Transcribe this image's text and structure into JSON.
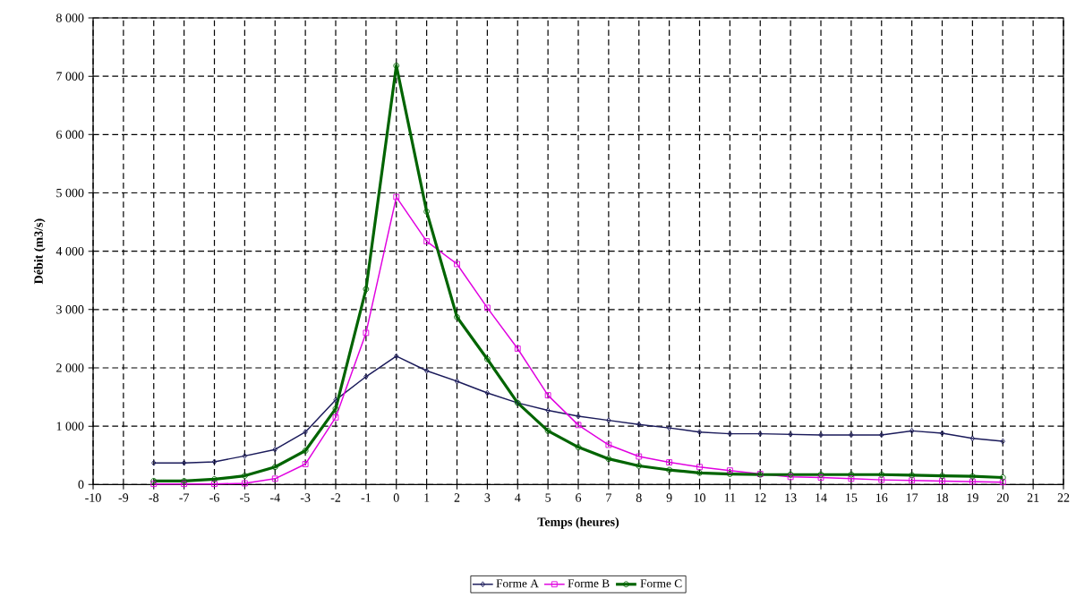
{
  "chart_data": {
    "type": "line",
    "xlabel": "Temps (heures)",
    "ylabel": "Débit (m3/s)",
    "x": [
      -8,
      -7,
      -6,
      -5,
      -4,
      -3,
      -2,
      -1,
      0,
      1,
      2,
      3,
      4,
      5,
      6,
      7,
      8,
      9,
      10,
      11,
      12,
      13,
      14,
      15,
      16,
      17,
      18,
      19,
      20
    ],
    "series": [
      {
        "name": "Forme A",
        "color": "#1a1a5a",
        "marker": "diamond",
        "values": [
          370,
          370,
          390,
          490,
          600,
          900,
          1450,
          1850,
          2200,
          1950,
          1770,
          1570,
          1400,
          1270,
          1170,
          1100,
          1030,
          970,
          900,
          870,
          870,
          860,
          850,
          850,
          850,
          920,
          880,
          790,
          740
        ]
      },
      {
        "name": "Forme B",
        "color": "#e000e0",
        "marker": "square",
        "values": [
          10,
          10,
          10,
          20,
          100,
          350,
          1150,
          2600,
          4930,
          4170,
          3780,
          3030,
          2330,
          1530,
          1020,
          680,
          480,
          380,
          300,
          240,
          180,
          130,
          120,
          100,
          80,
          70,
          60,
          50,
          40
        ]
      },
      {
        "name": "Forme C",
        "color": "#006400",
        "marker": "circle",
        "values": [
          60,
          60,
          90,
          150,
          300,
          580,
          1300,
          3350,
          7180,
          4680,
          2870,
          2150,
          1400,
          920,
          640,
          440,
          320,
          250,
          200,
          180,
          170,
          170,
          170,
          170,
          170,
          160,
          150,
          140,
          120
        ]
      }
    ],
    "xlim": [
      -10,
      22
    ],
    "xticks": [
      -10,
      -9,
      -8,
      -7,
      -6,
      -5,
      -4,
      -3,
      -2,
      -1,
      0,
      1,
      2,
      3,
      4,
      5,
      6,
      7,
      8,
      9,
      10,
      11,
      12,
      13,
      14,
      15,
      16,
      17,
      18,
      19,
      20,
      21,
      22
    ],
    "ylim": [
      0,
      8000
    ],
    "yticks": [
      {
        "value": 0,
        "label": "0"
      },
      {
        "value": 1000,
        "label": "1 000"
      },
      {
        "value": 2000,
        "label": "2 000"
      },
      {
        "value": 3000,
        "label": "3 000"
      },
      {
        "value": 4000,
        "label": "4 000"
      },
      {
        "value": 5000,
        "label": "5 000"
      },
      {
        "value": 6000,
        "label": "6 000"
      },
      {
        "value": 7000,
        "label": "7 000"
      },
      {
        "value": 8000,
        "label": "8 000"
      }
    ],
    "grid": true,
    "legend": "bottom",
    "line_style": "solid"
  }
}
